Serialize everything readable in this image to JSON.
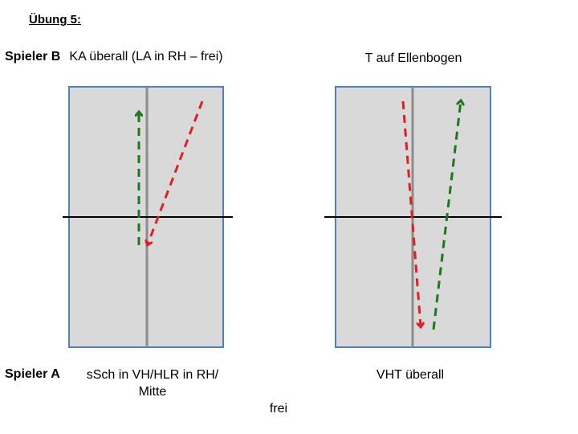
{
  "title": "Übung 5:",
  "player_top": "Spieler B",
  "player_bottom": "Spieler A",
  "left_top_label": "KA überall (LA in RH – frei)",
  "right_top_label": "T auf Ellenbogen",
  "left_bottom_label": "sSch in VH/HLR in RH/ Mitte",
  "right_bottom_label": "VHT überall",
  "bottom_extra": "frei",
  "colors": {
    "table_fill": "#d9d9d9",
    "table_border": "#4f81bd",
    "center_line": "#8c8c8c",
    "net": "#000000",
    "arrow_green": "#1a7a1a",
    "arrow_red": "#e02020"
  }
}
